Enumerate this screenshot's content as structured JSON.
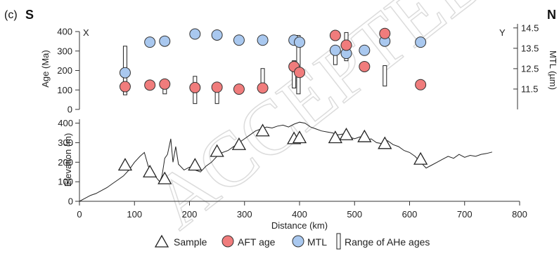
{
  "panel_label": "(c)",
  "orientation": {
    "left": "S",
    "right": "N"
  },
  "watermark_text": "ACCEPTED MANUSCRIPT",
  "colors": {
    "aft": "#f07c7c",
    "mtl": "#a9c8ef",
    "stroke": "#333333",
    "profile": "#222222"
  },
  "chart_data": [
    {
      "type": "scatter",
      "x_range": [
        0,
        800
      ],
      "ylabel": "Age (Ma)",
      "ylim": [
        0,
        400
      ],
      "y_ticks": [
        "0",
        "100",
        "200",
        "300",
        "400"
      ],
      "y2label": "MTL (µm)",
      "y2lim": [
        10.5,
        14.7
      ],
      "y2_ticks": [
        "11.5",
        "12.5",
        "13.5",
        "14.5"
      ],
      "corner_labels": {
        "left": "X",
        "right": "Y"
      },
      "series": [
        {
          "name": "AFT age",
          "points": [
            {
              "x": 83,
              "y": 117
            },
            {
              "x": 128,
              "y": 125
            },
            {
              "x": 155,
              "y": 130
            },
            {
              "x": 210,
              "y": 112
            },
            {
              "x": 250,
              "y": 114
            },
            {
              "x": 290,
              "y": 104
            },
            {
              "x": 333,
              "y": 110
            },
            {
              "x": 390,
              "y": 220
            },
            {
              "x": 400,
              "y": 190
            },
            {
              "x": 465,
              "y": 380
            },
            {
              "x": 485,
              "y": 330
            },
            {
              "x": 518,
              "y": 220
            },
            {
              "x": 555,
              "y": 390
            },
            {
              "x": 620,
              "y": 127
            }
          ]
        },
        {
          "name": "MTL",
          "points": [
            {
              "x": 83,
              "y": 12.3
            },
            {
              "x": 128,
              "y": 13.8
            },
            {
              "x": 155,
              "y": 13.85
            },
            {
              "x": 210,
              "y": 14.2
            },
            {
              "x": 250,
              "y": 14.15
            },
            {
              "x": 290,
              "y": 13.9
            },
            {
              "x": 333,
              "y": 13.9
            },
            {
              "x": 390,
              "y": 13.9
            },
            {
              "x": 400,
              "y": 13.8
            },
            {
              "x": 465,
              "y": 13.4
            },
            {
              "x": 485,
              "y": 13.25
            },
            {
              "x": 518,
              "y": 13.4
            },
            {
              "x": 555,
              "y": 13.85
            },
            {
              "x": 620,
              "y": 13.8
            }
          ]
        },
        {
          "name": "Range of AHe ages",
          "ranges": [
            {
              "x": 83,
              "min": 75,
              "max": 325
            },
            {
              "x": 155,
              "min": 80,
              "max": 110
            },
            {
              "x": 210,
              "min": 30,
              "max": 170
            },
            {
              "x": 250,
              "min": 30,
              "max": 90
            },
            {
              "x": 333,
              "min": 110,
              "max": 210
            },
            {
              "x": 390,
              "min": 110,
              "max": 250
            },
            {
              "x": 398,
              "min": 80,
              "max": 380
            },
            {
              "x": 465,
              "min": 230,
              "max": 290
            },
            {
              "x": 485,
              "min": 250,
              "max": 395
            },
            {
              "x": 555,
              "min": 120,
              "max": 225
            }
          ]
        }
      ]
    },
    {
      "type": "line",
      "xlabel": "Distance (km)",
      "ylabel": "Elevation (m)",
      "xlim": [
        0,
        800
      ],
      "x_ticks": [
        "0",
        "100",
        "200",
        "300",
        "400",
        "500",
        "600",
        "700",
        "800"
      ],
      "ylim": [
        0,
        420
      ],
      "y_ticks": [
        "0",
        "100",
        "200",
        "300",
        "400"
      ],
      "profile": {
        "x": [
          0,
          10,
          20,
          30,
          40,
          50,
          60,
          70,
          80,
          90,
          100,
          110,
          118,
          125,
          132,
          140,
          146,
          150,
          155,
          160,
          166,
          170,
          175,
          180,
          190,
          200,
          210,
          220,
          230,
          240,
          250,
          260,
          270,
          280,
          290,
          300,
          310,
          320,
          330,
          340,
          350,
          360,
          370,
          380,
          390,
          400,
          410,
          420,
          430,
          440,
          450,
          460,
          470,
          480,
          490,
          500,
          510,
          520,
          530,
          540,
          550,
          560,
          570,
          580,
          590,
          600,
          610,
          620,
          630,
          640,
          650,
          660,
          670,
          680,
          690,
          700,
          710,
          720,
          730,
          740,
          750
        ],
        "y": [
          0,
          15,
          30,
          40,
          55,
          70,
          90,
          110,
          130,
          160,
          200,
          230,
          250,
          180,
          150,
          120,
          100,
          130,
          220,
          240,
          320,
          200,
          280,
          190,
          160,
          175,
          160,
          150,
          180,
          200,
          230,
          250,
          260,
          280,
          300,
          320,
          340,
          360,
          370,
          380,
          375,
          385,
          390,
          380,
          395,
          405,
          400,
          380,
          370,
          360,
          355,
          350,
          340,
          345,
          330,
          320,
          330,
          310,
          320,
          300,
          295,
          310,
          290,
          280,
          260,
          250,
          230,
          200,
          170,
          185,
          200,
          215,
          230,
          220,
          240,
          225,
          235,
          230,
          240,
          245,
          252
        ]
      },
      "samples": [
        {
          "x": 83,
          "y": 185
        },
        {
          "x": 128,
          "y": 150
        },
        {
          "x": 155,
          "y": 115
        },
        {
          "x": 210,
          "y": 185
        },
        {
          "x": 250,
          "y": 255
        },
        {
          "x": 290,
          "y": 290
        },
        {
          "x": 333,
          "y": 360
        },
        {
          "x": 390,
          "y": 320
        },
        {
          "x": 400,
          "y": 325
        },
        {
          "x": 465,
          "y": 325
        },
        {
          "x": 485,
          "y": 340
        },
        {
          "x": 518,
          "y": 330
        },
        {
          "x": 555,
          "y": 295
        },
        {
          "x": 620,
          "y": 215
        }
      ]
    }
  ],
  "legend": [
    {
      "label": "Sample",
      "symbol": "triangle"
    },
    {
      "label": "AFT age",
      "symbol": "red-circle"
    },
    {
      "label": "MTL",
      "symbol": "blue-circle"
    },
    {
      "label": "Range of AHe ages",
      "symbol": "open-bar"
    }
  ]
}
